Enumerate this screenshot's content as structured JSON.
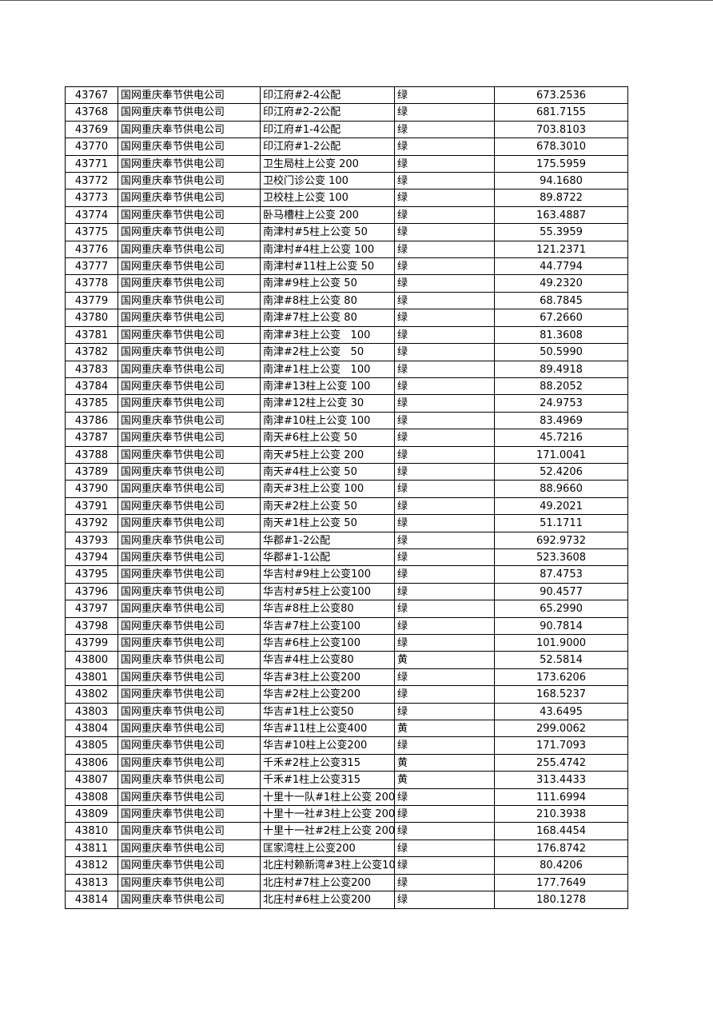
{
  "table": {
    "rows": [
      [
        43767,
        "国网重庆奉节供电公司",
        "印江府#2-4公配",
        "绿",
        "673.2536"
      ],
      [
        43768,
        "国网重庆奉节供电公司",
        "印江府#2-2公配",
        "绿",
        "681.7155"
      ],
      [
        43769,
        "国网重庆奉节供电公司",
        "印江府#1-4公配",
        "绿",
        "703.8103"
      ],
      [
        43770,
        "国网重庆奉节供电公司",
        "印江府#1-2公配",
        "绿",
        "678.3010"
      ],
      [
        43771,
        "国网重庆奉节供电公司",
        "卫生局柱上公变 200",
        "绿",
        "175.5959"
      ],
      [
        43772,
        "国网重庆奉节供电公司",
        "卫校门诊公变 100",
        "绿",
        "94.1680"
      ],
      [
        43773,
        "国网重庆奉节供电公司",
        "卫校柱上公变 100",
        "绿",
        "89.8722"
      ],
      [
        43774,
        "国网重庆奉节供电公司",
        "卧马槽柱上公变 200",
        "绿",
        "163.4887"
      ],
      [
        43775,
        "国网重庆奉节供电公司",
        "南津村#5柱上公变 50",
        "绿",
        "55.3959"
      ],
      [
        43776,
        "国网重庆奉节供电公司",
        "南津村#4柱上公变 100",
        "绿",
        "121.2371"
      ],
      [
        43777,
        "国网重庆奉节供电公司",
        "南津村#11柱上公变 50",
        "绿",
        "44.7794"
      ],
      [
        43778,
        "国网重庆奉节供电公司",
        "南津#9柱上公变 50",
        "绿",
        "49.2320"
      ],
      [
        43779,
        "国网重庆奉节供电公司",
        "南津#8柱上公变 80",
        "绿",
        "68.7845"
      ],
      [
        43780,
        "国网重庆奉节供电公司",
        "南津#7柱上公变 80",
        "绿",
        "67.2660"
      ],
      [
        43781,
        "国网重庆奉节供电公司",
        "南津#3柱上公变   100",
        "绿",
        "81.3608"
      ],
      [
        43782,
        "国网重庆奉节供电公司",
        "南津#2柱上公变   50",
        "绿",
        "50.5990"
      ],
      [
        43783,
        "国网重庆奉节供电公司",
        "南津#1柱上公变   100",
        "绿",
        "89.4918"
      ],
      [
        43784,
        "国网重庆奉节供电公司",
        "南津#13柱上公变 100",
        "绿",
        "88.2052"
      ],
      [
        43785,
        "国网重庆奉节供电公司",
        "南津#12柱上公变 30",
        "绿",
        "24.9753"
      ],
      [
        43786,
        "国网重庆奉节供电公司",
        "南津#10柱上公变 100",
        "绿",
        "83.4969"
      ],
      [
        43787,
        "国网重庆奉节供电公司",
        "南天#6柱上公变 50",
        "绿",
        "45.7216"
      ],
      [
        43788,
        "国网重庆奉节供电公司",
        "南天#5柱上公变 200",
        "绿",
        "171.0041"
      ],
      [
        43789,
        "国网重庆奉节供电公司",
        "南天#4柱上公变 50",
        "绿",
        "52.4206"
      ],
      [
        43790,
        "国网重庆奉节供电公司",
        "南天#3柱上公变 100",
        "绿",
        "88.9660"
      ],
      [
        43791,
        "国网重庆奉节供电公司",
        "南天#2柱上公变 50",
        "绿",
        "49.2021"
      ],
      [
        43792,
        "国网重庆奉节供电公司",
        "南天#1柱上公变 50",
        "绿",
        "51.1711"
      ],
      [
        43793,
        "国网重庆奉节供电公司",
        "华郡#1-2公配",
        "绿",
        "692.9732"
      ],
      [
        43794,
        "国网重庆奉节供电公司",
        "华郡#1-1公配",
        "绿",
        "523.3608"
      ],
      [
        43795,
        "国网重庆奉节供电公司",
        "华吉村#9柱上公变100",
        "绿",
        "87.4753"
      ],
      [
        43796,
        "国网重庆奉节供电公司",
        "华吉村#5柱上公变100",
        "绿",
        "90.4577"
      ],
      [
        43797,
        "国网重庆奉节供电公司",
        "华吉#8柱上公变80",
        "绿",
        "65.2990"
      ],
      [
        43798,
        "国网重庆奉节供电公司",
        "华吉#7柱上公变100",
        "绿",
        "90.7814"
      ],
      [
        43799,
        "国网重庆奉节供电公司",
        "华吉#6柱上公变100",
        "绿",
        "101.9000"
      ],
      [
        43800,
        "国网重庆奉节供电公司",
        "华吉#4柱上公变80",
        "黄",
        "52.5814"
      ],
      [
        43801,
        "国网重庆奉节供电公司",
        "华吉#3柱上公变200",
        "绿",
        "173.6206"
      ],
      [
        43802,
        "国网重庆奉节供电公司",
        "华吉#2柱上公变200",
        "绿",
        "168.5237"
      ],
      [
        43803,
        "国网重庆奉节供电公司",
        "华吉#1柱上公变50",
        "绿",
        "43.6495"
      ],
      [
        43804,
        "国网重庆奉节供电公司",
        "华吉#11柱上公变400",
        "黄",
        "299.0062"
      ],
      [
        43805,
        "国网重庆奉节供电公司",
        "华吉#10柱上公变200",
        "绿",
        "171.7093"
      ],
      [
        43806,
        "国网重庆奉节供电公司",
        "千禾#2柱上公变315",
        "黄",
        "255.4742"
      ],
      [
        43807,
        "国网重庆奉节供电公司",
        "千禾#1柱上公变315",
        "黄",
        "313.4433"
      ],
      [
        43808,
        "国网重庆奉节供电公司",
        "十里十一队#1柱上公变 200",
        "绿",
        "111.6994"
      ],
      [
        43809,
        "国网重庆奉节供电公司",
        "十里十一社#3柱上公变 200",
        "绿",
        "210.3938"
      ],
      [
        43810,
        "国网重庆奉节供电公司",
        "十里十一社#2柱上公变 200",
        "绿",
        "168.4454"
      ],
      [
        43811,
        "国网重庆奉节供电公司",
        "匡家湾柱上公变200",
        "绿",
        "176.8742"
      ],
      [
        43812,
        "国网重庆奉节供电公司",
        "北庄村赖新湾#3柱上公变10",
        "绿",
        "80.4206"
      ],
      [
        43813,
        "国网重庆奉节供电公司",
        "北庄村#7柱上公变200",
        "绿",
        "177.7649"
      ],
      [
        43814,
        "国网重庆奉节供电公司",
        "北庄村#6柱上公变200",
        "绿",
        "180.1278"
      ]
    ]
  }
}
